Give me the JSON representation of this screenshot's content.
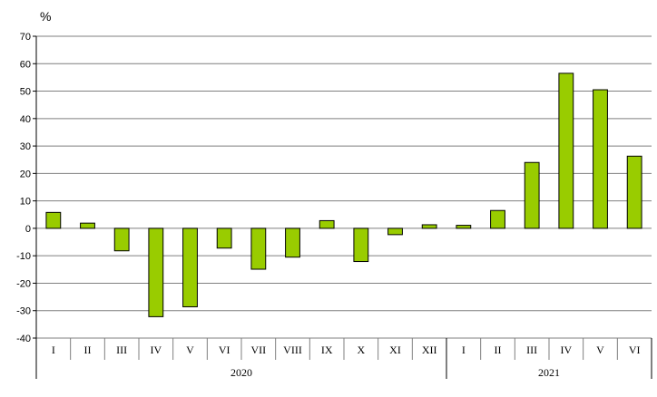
{
  "chart_data": {
    "type": "bar",
    "ylabel": "%",
    "ylim": [
      -40,
      70
    ],
    "yticks": [
      70,
      60,
      50,
      40,
      30,
      20,
      10,
      0,
      -10,
      -20,
      -30,
      -40
    ],
    "grid": true,
    "categories": [
      "I",
      "II",
      "III",
      "IV",
      "V",
      "VI",
      "VII",
      "VIII",
      "IX",
      "X",
      "XI",
      "XII",
      "I",
      "II",
      "III",
      "IV",
      "V",
      "VI"
    ],
    "groups": [
      {
        "label": "2020",
        "count": 12
      },
      {
        "label": "2021",
        "count": 6
      }
    ],
    "series": [
      {
        "values": [
          5.8,
          1.9,
          -8.2,
          -32.2,
          -28.6,
          -7.2,
          -14.9,
          -10.5,
          2.8,
          -12.1,
          -2.3,
          1.3,
          1.1,
          6.5,
          24.0,
          56.5,
          50.5,
          26.3
        ]
      }
    ],
    "bar_color": "#99cc00",
    "bar_border": "#000000",
    "grid_color": "#7f7f7f"
  }
}
